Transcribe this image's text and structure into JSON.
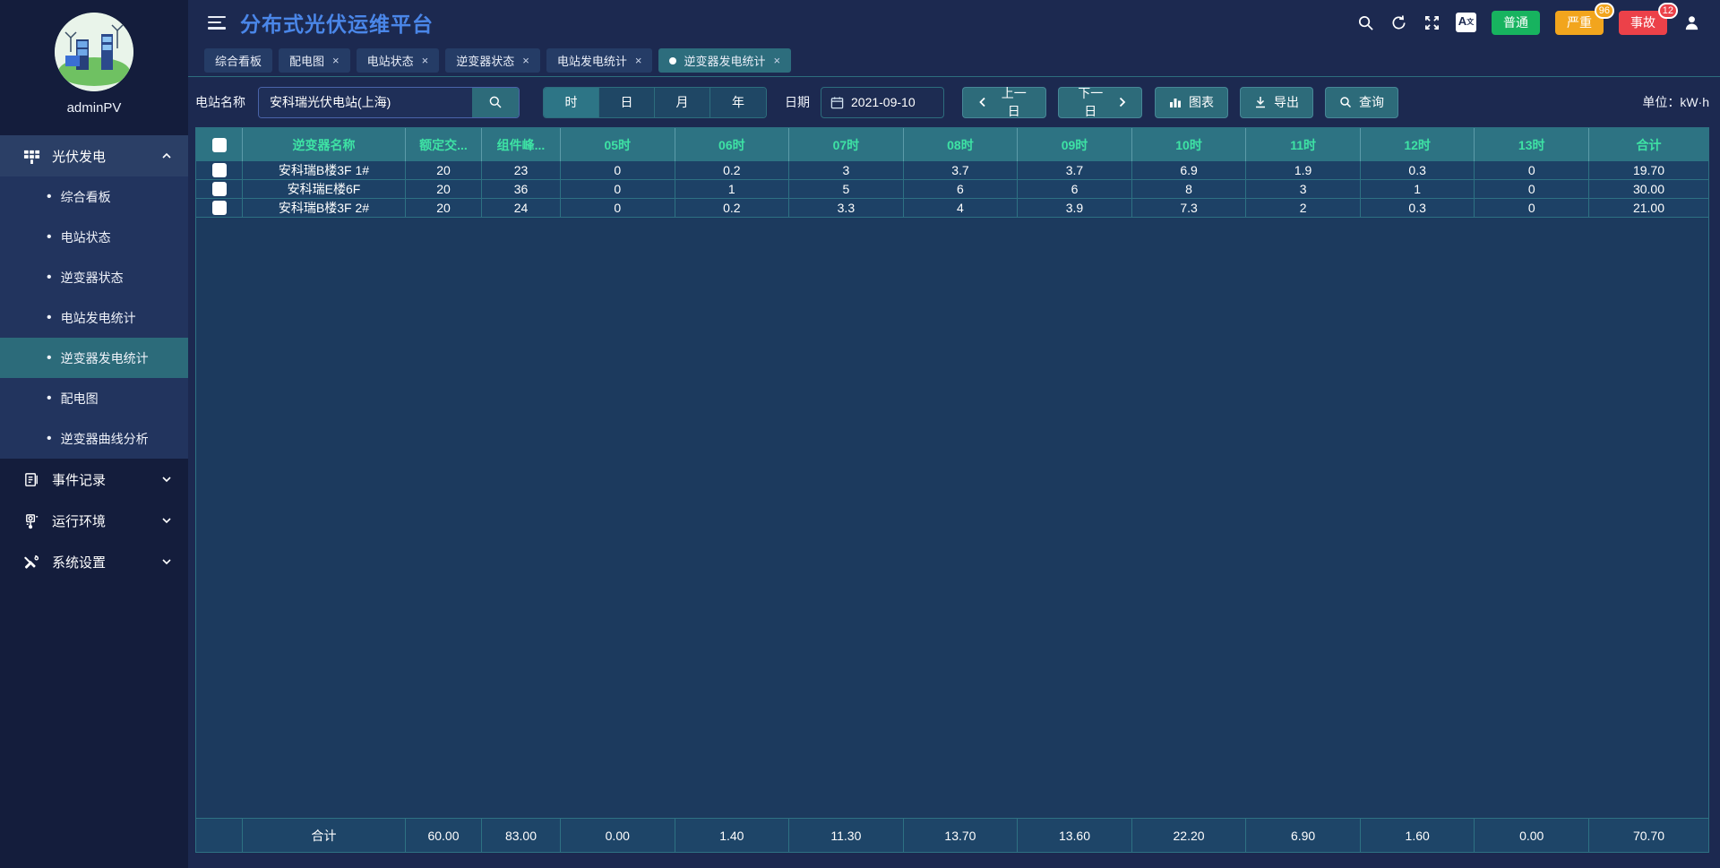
{
  "app": {
    "title": "分布式光伏运维平台",
    "user": "adminPV",
    "unit": "单位：kW·h"
  },
  "topbar": {
    "icons": [
      "search-icon",
      "refresh-icon",
      "fullscreen-icon",
      "translate-icon",
      "user-icon"
    ],
    "translate_glyph": {
      "main": "A",
      "sub": "文"
    },
    "badges": [
      {
        "label": "普通",
        "count": "",
        "color": "#17b35f"
      },
      {
        "label": "严重",
        "count": "96",
        "color": "#f2a51d"
      },
      {
        "label": "事故",
        "count": "12",
        "color": "#ec4149"
      }
    ]
  },
  "tabs": [
    {
      "label": "综合看板",
      "closable": false,
      "active": false
    },
    {
      "label": "配电图",
      "closable": true,
      "active": false
    },
    {
      "label": "电站状态",
      "closable": true,
      "active": false
    },
    {
      "label": "逆变器状态",
      "closable": true,
      "active": false
    },
    {
      "label": "电站发电统计",
      "closable": true,
      "active": false
    },
    {
      "label": "逆变器发电统计",
      "closable": true,
      "active": true
    }
  ],
  "sidebar": {
    "group": {
      "label": "光伏发电",
      "expanded": true
    },
    "submenu": [
      {
        "label": "综合看板",
        "active": false
      },
      {
        "label": "电站状态",
        "active": false
      },
      {
        "label": "逆变器状态",
        "active": false
      },
      {
        "label": "电站发电统计",
        "active": false
      },
      {
        "label": "逆变器发电统计",
        "active": true
      },
      {
        "label": "配电图",
        "active": false
      },
      {
        "label": "逆变器曲线分析",
        "active": false
      }
    ],
    "others": [
      {
        "label": "事件记录",
        "icon": "event-log-icon"
      },
      {
        "label": "运行环境",
        "icon": "environment-icon"
      },
      {
        "label": "系统设置",
        "icon": "settings-icon"
      }
    ]
  },
  "filter": {
    "station_label": "电站名称",
    "station_value": "安科瑞光伏电站(上海)",
    "periods": [
      "时",
      "日",
      "月",
      "年"
    ],
    "active_period": "时",
    "date_label": "日期",
    "date_value": "2021-09-10",
    "prev": "上一日",
    "next": "下一日",
    "chart": "图表",
    "export": "导出",
    "query": "查询"
  },
  "table": {
    "columns": [
      "逆变器名称",
      "额定交...",
      "组件峰...",
      "05时",
      "06时",
      "07时",
      "08时",
      "09时",
      "10时",
      "11时",
      "12时",
      "13时",
      "合计"
    ],
    "rows": [
      {
        "name": "安科瑞B楼3F 1#",
        "values": [
          "20",
          "23",
          "0",
          "0.2",
          "3",
          "3.7",
          "3.7",
          "6.9",
          "1.9",
          "0.3",
          "0",
          "19.70"
        ]
      },
      {
        "name": "安科瑞E楼6F",
        "values": [
          "20",
          "36",
          "0",
          "1",
          "5",
          "6",
          "6",
          "8",
          "3",
          "1",
          "0",
          "30.00"
        ]
      },
      {
        "name": "安科瑞B楼3F 2#",
        "values": [
          "20",
          "24",
          "0",
          "0.2",
          "3.3",
          "4",
          "3.9",
          "7.3",
          "2",
          "0.3",
          "0",
          "21.00"
        ]
      }
    ],
    "footer": {
      "label": "合计",
      "values": [
        "60.00",
        "83.00",
        "0.00",
        "1.40",
        "11.30",
        "13.70",
        "13.60",
        "22.20",
        "6.90",
        "1.60",
        "0.00",
        "70.70"
      ]
    }
  }
}
